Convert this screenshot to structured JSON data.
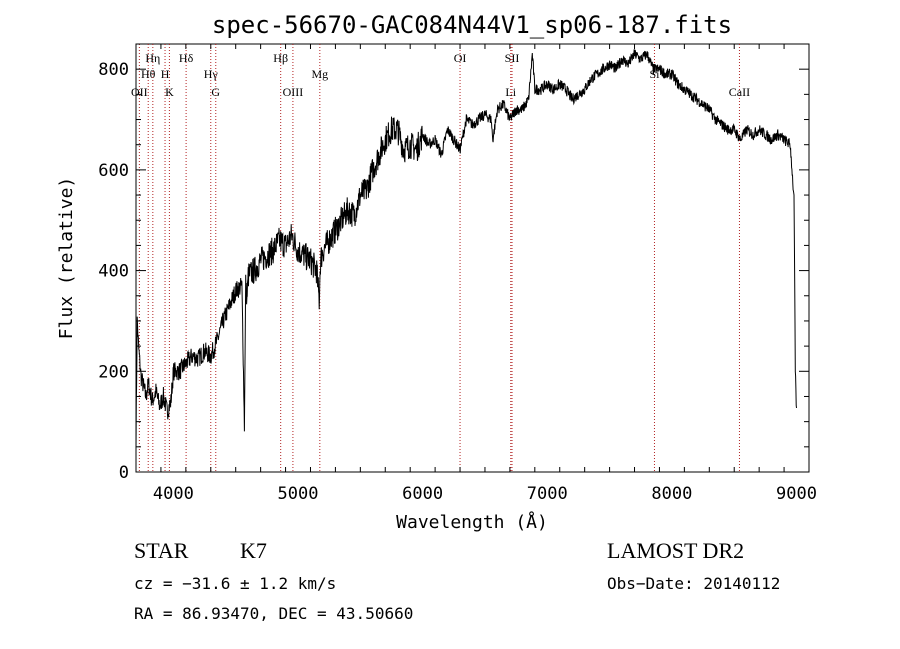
{
  "chart_data": {
    "type": "line",
    "title": "spec-56670-GAC084N44V1_sp06-187.fits",
    "xlabel": "Wavelength (Å)",
    "ylabel": "Flux (relative)",
    "xlim": [
      3700,
      9100
    ],
    "ylim": [
      0,
      850
    ],
    "xticks": [
      4000,
      5000,
      6000,
      7000,
      8000,
      9000
    ],
    "yticks": [
      0,
      200,
      400,
      600,
      800
    ],
    "grid": false,
    "series": [
      {
        "x": [
          3700,
          3710,
          3720,
          3740,
          3760,
          3780,
          3800,
          3830,
          3860,
          3890,
          3920,
          3950,
          3980,
          4000,
          4050,
          4100,
          4150,
          4200,
          4250,
          4300,
          4350,
          4400,
          4450,
          4500,
          4550,
          4570,
          4580,
          4590,
          4600,
          4650,
          4700,
          4750,
          4800,
          4850,
          4900,
          4950,
          5000,
          5050,
          5100,
          5150,
          5170,
          5180,
          5200,
          5250,
          5300,
          5350,
          5400,
          5450,
          5500,
          5550,
          5600,
          5650,
          5700,
          5750,
          5800,
          5850,
          5900,
          5950,
          6000,
          6050,
          6100,
          6150,
          6200,
          6250,
          6300,
          6350,
          6400,
          6450,
          6500,
          6550,
          6563,
          6600,
          6650,
          6700,
          6750,
          6800,
          6850,
          6880,
          6900,
          6950,
          7000,
          7050,
          7100,
          7150,
          7200,
          7250,
          7300,
          7350,
          7400,
          7450,
          7500,
          7550,
          7600,
          7650,
          7700,
          7750,
          7800,
          7850,
          7900,
          7950,
          8000,
          8050,
          8100,
          8150,
          8200,
          8250,
          8300,
          8350,
          8400,
          8450,
          8500,
          8550,
          8600,
          8650,
          8700,
          8750,
          8800,
          8850,
          8900,
          8950,
          8980,
          8990,
          9000
        ],
        "y": [
          60,
          300,
          250,
          190,
          170,
          150,
          175,
          140,
          160,
          130,
          150,
          120,
          140,
          200,
          200,
          215,
          230,
          225,
          240,
          230,
          260,
          300,
          330,
          360,
          370,
          90,
          380,
          340,
          390,
          400,
          420,
          430,
          440,
          460,
          450,
          470,
          440,
          430,
          420,
          400,
          340,
          420,
          440,
          460,
          480,
          500,
          520,
          510,
          550,
          560,
          600,
          630,
          660,
          680,
          680,
          640,
          650,
          640,
          670,
          650,
          660,
          630,
          680,
          660,
          640,
          700,
          690,
          700,
          710,
          700,
          660,
          720,
          730,
          700,
          720,
          720,
          740,
          830,
          760,
          760,
          770,
          760,
          770,
          760,
          740,
          750,
          760,
          780,
          790,
          800,
          810,
          800,
          820,
          810,
          830,
          820,
          830,
          800,
          800,
          790,
          790,
          770,
          760,
          750,
          740,
          730,
          720,
          700,
          690,
          680,
          680,
          660,
          680,
          670,
          680,
          670,
          660,
          670,
          660,
          650,
          540,
          200,
          120
        ]
      }
    ],
    "line_markers": [
      {
        "label": "OII",
        "x": 3727,
        "row": 3
      },
      {
        "label": "Hθ",
        "x": 3798,
        "row": 2
      },
      {
        "label": "Hη",
        "x": 3835,
        "row": 1
      },
      {
        "label": "H",
        "x": 3933,
        "row": 2
      },
      {
        "label": "K",
        "x": 3968,
        "row": 3
      },
      {
        "label": "Hδ",
        "x": 4102,
        "row": 1
      },
      {
        "label": "Hγ",
        "x": 4300,
        "row": 2
      },
      {
        "label": "G",
        "x": 4340,
        "row": 3
      },
      {
        "label": "Hβ",
        "x": 4861,
        "row": 1
      },
      {
        "label": "OIII",
        "x": 4959,
        "row": 3
      },
      {
        "label": "Mg",
        "x": 5175,
        "row": 2
      },
      {
        "label": "OI",
        "x": 6300,
        "row": 1
      },
      {
        "label": "SII",
        "x": 6717,
        "row": 1
      },
      {
        "label": "Li",
        "x": 6707,
        "row": 3
      },
      {
        "label": "Si",
        "x": 7860,
        "row": 2
      },
      {
        "label": "CaII",
        "x": 8542,
        "row": 3
      }
    ]
  },
  "footer": {
    "class_label": "STAR",
    "subclass": "K7",
    "survey": "LAMOST DR2",
    "cz": "cz = −31.6 ± 1.2 km/s",
    "obs_date": "Obs−Date: 20140112",
    "coords": "RA =  86.93470, DEC =  43.50660"
  },
  "colors": {
    "spectrum": "#000000",
    "marker_lines": "#b22222"
  }
}
